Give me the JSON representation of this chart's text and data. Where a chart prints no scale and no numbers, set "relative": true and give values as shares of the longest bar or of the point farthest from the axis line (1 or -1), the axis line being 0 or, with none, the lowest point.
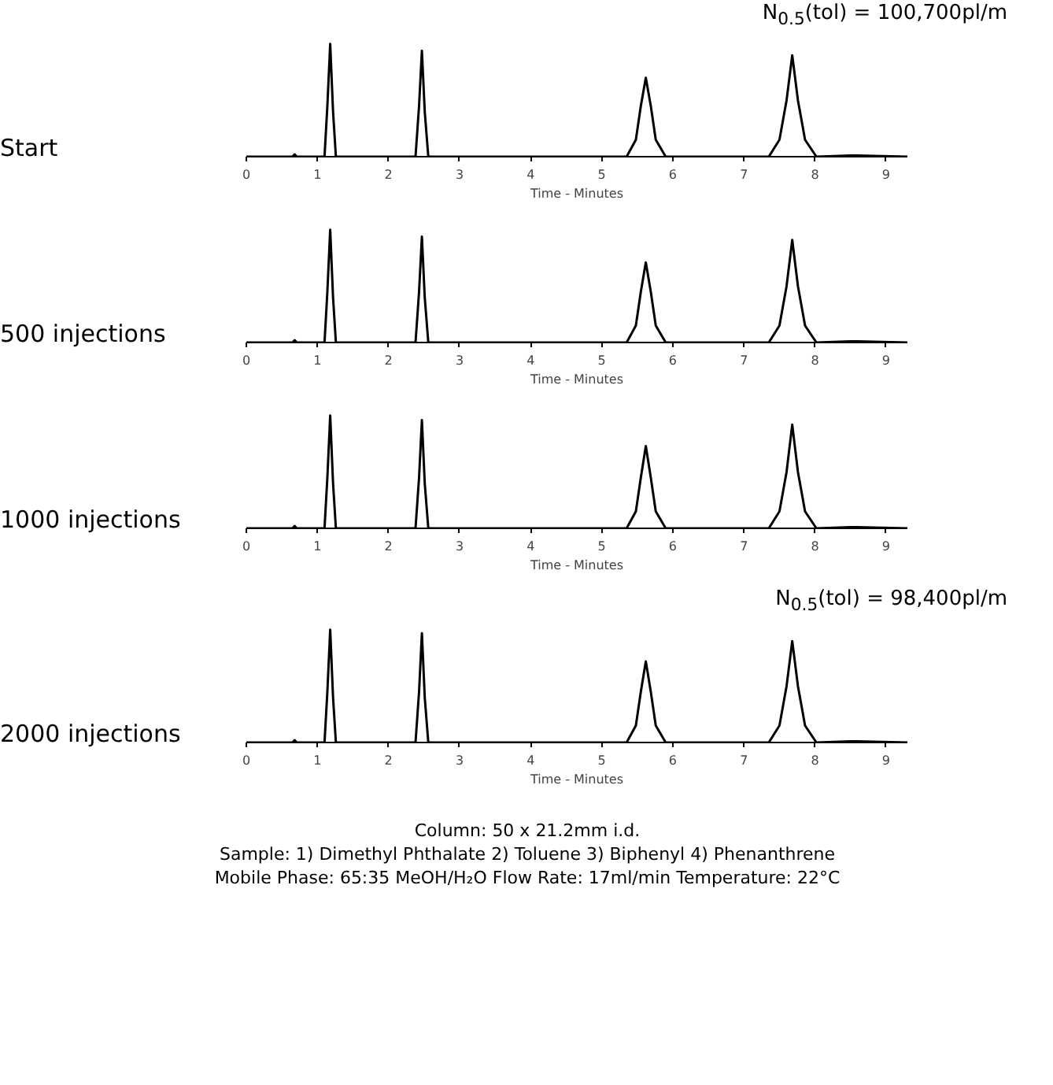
{
  "chart_data": [
    {
      "type": "line",
      "relative": true,
      "ylabel": "Start",
      "xlabel": "Time - Minutes",
      "xlim": [
        0,
        9.3
      ],
      "xticks": [
        0,
        1,
        2,
        3,
        4,
        5,
        6,
        7,
        8,
        9
      ],
      "annotations": [
        "N$_{0.5}$(tol) = 100,700pl/m"
      ],
      "x": [
        0,
        0.65,
        0.68,
        0.71,
        1.1,
        1.14,
        1.18,
        1.22,
        1.26,
        2.38,
        2.43,
        2.47,
        2.51,
        2.56,
        5.35,
        5.48,
        5.55,
        5.62,
        5.69,
        5.76,
        5.9,
        7.35,
        7.5,
        7.6,
        7.68,
        7.76,
        7.86,
        8.02,
        8.5,
        8.6,
        9.3
      ],
      "series": [
        {
          "color": "#000000",
          "values": [
            0,
            0,
            0.02,
            0,
            0,
            0.45,
            1,
            0.4,
            0,
            0,
            0.45,
            0.94,
            0.4,
            0,
            0,
            0.15,
            0.45,
            0.7,
            0.45,
            0.15,
            0,
            0,
            0.15,
            0.5,
            0.9,
            0.5,
            0.15,
            0,
            0.01,
            0.01,
            0
          ]
        }
      ]
    },
    {
      "type": "line",
      "relative": true,
      "ylabel": "500 injections",
      "xlabel": "Time - Minutes",
      "xlim": [
        0,
        9.3
      ],
      "xticks": [
        0,
        1,
        2,
        3,
        4,
        5,
        6,
        7,
        8,
        9
      ],
      "x": [
        0,
        0.65,
        0.68,
        0.71,
        1.1,
        1.14,
        1.18,
        1.22,
        1.26,
        2.38,
        2.43,
        2.47,
        2.51,
        2.56,
        5.35,
        5.48,
        5.55,
        5.62,
        5.69,
        5.76,
        5.9,
        7.35,
        7.5,
        7.6,
        7.68,
        7.76,
        7.86,
        8.02,
        8.5,
        8.6,
        9.3
      ],
      "series": [
        {
          "color": "#000000",
          "values": [
            0,
            0,
            0.02,
            0,
            0,
            0.45,
            1,
            0.4,
            0,
            0,
            0.45,
            0.94,
            0.4,
            0,
            0,
            0.15,
            0.45,
            0.71,
            0.45,
            0.15,
            0,
            0,
            0.15,
            0.5,
            0.91,
            0.5,
            0.15,
            0,
            0.01,
            0.01,
            0
          ]
        }
      ]
    },
    {
      "type": "line",
      "relative": true,
      "ylabel": "1000 injections",
      "xlabel": "Time - Minutes",
      "xlim": [
        0,
        9.3
      ],
      "xticks": [
        0,
        1,
        2,
        3,
        4,
        5,
        6,
        7,
        8,
        9
      ],
      "x": [
        0,
        0.65,
        0.68,
        0.71,
        1.1,
        1.14,
        1.18,
        1.22,
        1.26,
        2.38,
        2.43,
        2.47,
        2.51,
        2.56,
        5.35,
        5.48,
        5.55,
        5.62,
        5.69,
        5.76,
        5.9,
        7.35,
        7.5,
        7.6,
        7.68,
        7.76,
        7.86,
        8.02,
        8.5,
        8.6,
        9.3
      ],
      "series": [
        {
          "color": "#000000",
          "values": [
            0,
            0,
            0.02,
            0,
            0,
            0.45,
            1,
            0.4,
            0,
            0,
            0.45,
            0.96,
            0.4,
            0,
            0,
            0.15,
            0.45,
            0.73,
            0.45,
            0.15,
            0,
            0,
            0.15,
            0.5,
            0.92,
            0.5,
            0.15,
            0,
            0.01,
            0.01,
            0
          ]
        }
      ]
    },
    {
      "type": "line",
      "relative": true,
      "ylabel": "2000 injections",
      "xlabel": "Time - Minutes",
      "xlim": [
        0,
        9.3
      ],
      "xticks": [
        0,
        1,
        2,
        3,
        4,
        5,
        6,
        7,
        8,
        9
      ],
      "annotations": [
        "N$_{0.5}$(tol) = 98,400pl/m"
      ],
      "x": [
        0,
        0.65,
        0.68,
        0.71,
        1.1,
        1.14,
        1.18,
        1.22,
        1.26,
        2.38,
        2.43,
        2.47,
        2.51,
        2.56,
        5.35,
        5.48,
        5.55,
        5.62,
        5.69,
        5.76,
        5.9,
        7.35,
        7.5,
        7.6,
        7.68,
        7.76,
        7.86,
        8.02,
        8.5,
        8.6,
        9.3
      ],
      "series": [
        {
          "color": "#000000",
          "values": [
            0,
            0,
            0.02,
            0,
            0,
            0.45,
            1,
            0.4,
            0,
            0,
            0.45,
            0.97,
            0.4,
            0,
            0,
            0.15,
            0.45,
            0.72,
            0.45,
            0.15,
            0,
            0,
            0.15,
            0.5,
            0.9,
            0.5,
            0.15,
            0,
            0.01,
            0.01,
            0
          ]
        }
      ]
    },
    {
      "type": "other",
      "annotations": [
        "Column: 50 x 21.2mm i.d.",
        "Sample: 1) Dimethyl Phthalate  2) Toluene  3) Biphenyl  4) Phenanthrene",
        "Mobile Phase: 65:35 MeOH/H₂O  Flow Rate: 17ml/min  Temperature: 22°C"
      ]
    }
  ]
}
